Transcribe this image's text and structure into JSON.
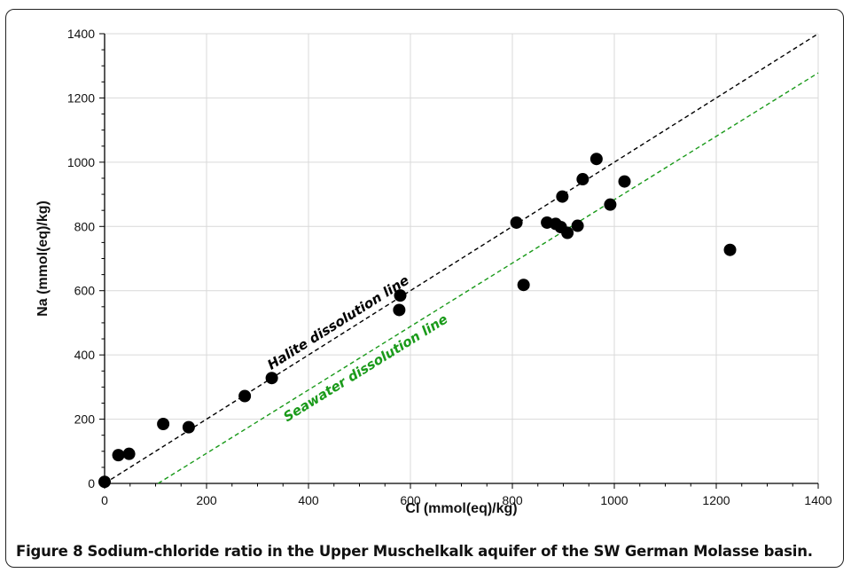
{
  "caption": {
    "label": "Figure 8",
    "text": "Sodium-chloride ratio in the Upper Muschelkalk aquifer of the SW German Molasse basin."
  },
  "chart_data": {
    "type": "scatter",
    "xlabel": "Cl (mmol(eq)/kg)",
    "ylabel": "Na (mmol(eq)/kg)",
    "xlim": [
      0,
      1400
    ],
    "ylim": [
      0,
      1400
    ],
    "xticks": [
      0,
      200,
      400,
      600,
      800,
      1000,
      1200,
      1400
    ],
    "yticks": [
      0,
      200,
      400,
      600,
      800,
      1000,
      1200,
      1400
    ],
    "grid": true,
    "colors": {
      "points": "#000000",
      "halite": "#000000",
      "seawater": "#1a9a1a",
      "grid": "#d9d9d9"
    },
    "points": [
      {
        "x": 0,
        "y": 5
      },
      {
        "x": 27,
        "y": 88
      },
      {
        "x": 48,
        "y": 92
      },
      {
        "x": 115,
        "y": 185
      },
      {
        "x": 165,
        "y": 175
      },
      {
        "x": 275,
        "y": 272
      },
      {
        "x": 328,
        "y": 328
      },
      {
        "x": 580,
        "y": 585
      },
      {
        "x": 578,
        "y": 540
      },
      {
        "x": 822,
        "y": 618
      },
      {
        "x": 808,
        "y": 812
      },
      {
        "x": 868,
        "y": 812
      },
      {
        "x": 885,
        "y": 808
      },
      {
        "x": 895,
        "y": 798
      },
      {
        "x": 908,
        "y": 780
      },
      {
        "x": 928,
        "y": 802
      },
      {
        "x": 898,
        "y": 893
      },
      {
        "x": 938,
        "y": 947
      },
      {
        "x": 965,
        "y": 1010
      },
      {
        "x": 992,
        "y": 868
      },
      {
        "x": 1020,
        "y": 940
      },
      {
        "x": 1227,
        "y": 727
      }
    ],
    "lines": [
      {
        "name": "Halite dissolution line",
        "x": [
          0,
          1400
        ],
        "y": [
          0,
          1400
        ],
        "style": "dashed"
      },
      {
        "name": "Seawater dissolution line",
        "x": [
          105,
          1400
        ],
        "y": [
          0,
          1278
        ],
        "style": "dashed"
      }
    ]
  }
}
